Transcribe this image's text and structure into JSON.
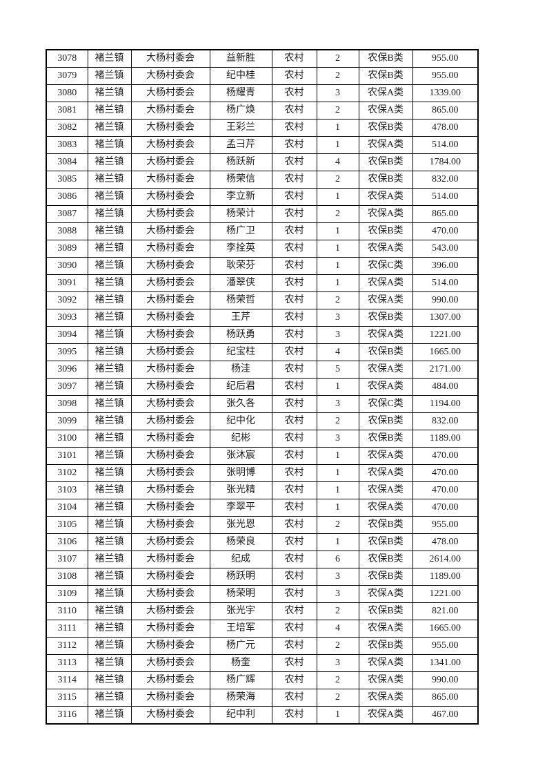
{
  "page": {
    "background_color": "#ffffff",
    "text_color": "#1d1d1d",
    "border_color": "#000000"
  },
  "table": {
    "rows": [
      [
        "3078",
        "褚兰镇",
        "大杨村委会",
        "益新胜",
        "农村",
        "2",
        "农保B类",
        "955.00"
      ],
      [
        "3079",
        "褚兰镇",
        "大杨村委会",
        "纪中桂",
        "农村",
        "2",
        "农保B类",
        "955.00"
      ],
      [
        "3080",
        "褚兰镇",
        "大杨村委会",
        "杨耀青",
        "农村",
        "3",
        "农保A类",
        "1339.00"
      ],
      [
        "3081",
        "褚兰镇",
        "大杨村委会",
        "杨广焕",
        "农村",
        "2",
        "农保A类",
        "865.00"
      ],
      [
        "3082",
        "褚兰镇",
        "大杨村委会",
        "王彩兰",
        "农村",
        "1",
        "农保B类",
        "478.00"
      ],
      [
        "3083",
        "褚兰镇",
        "大杨村委会",
        "孟彐芹",
        "农村",
        "1",
        "农保A类",
        "514.00"
      ],
      [
        "3084",
        "褚兰镇",
        "大杨村委会",
        "杨跃新",
        "农村",
        "4",
        "农保B类",
        "1784.00"
      ],
      [
        "3085",
        "褚兰镇",
        "大杨村委会",
        "杨荣信",
        "农村",
        "2",
        "农保B类",
        "832.00"
      ],
      [
        "3086",
        "褚兰镇",
        "大杨村委会",
        "李立新",
        "农村",
        "1",
        "农保A类",
        "514.00"
      ],
      [
        "3087",
        "褚兰镇",
        "大杨村委会",
        "杨荣计",
        "农村",
        "2",
        "农保A类",
        "865.00"
      ],
      [
        "3088",
        "褚兰镇",
        "大杨村委会",
        "杨广卫",
        "农村",
        "1",
        "农保B类",
        "470.00"
      ],
      [
        "3089",
        "褚兰镇",
        "大杨村委会",
        "李拴英",
        "农村",
        "1",
        "农保A类",
        "543.00"
      ],
      [
        "3090",
        "褚兰镇",
        "大杨村委会",
        "耿荣芬",
        "农村",
        "1",
        "农保C类",
        "396.00"
      ],
      [
        "3091",
        "褚兰镇",
        "大杨村委会",
        "潘翠侠",
        "农村",
        "1",
        "农保A类",
        "514.00"
      ],
      [
        "3092",
        "褚兰镇",
        "大杨村委会",
        "杨荣哲",
        "农村",
        "2",
        "农保A类",
        "990.00"
      ],
      [
        "3093",
        "褚兰镇",
        "大杨村委会",
        "王芹",
        "农村",
        "3",
        "农保B类",
        "1307.00"
      ],
      [
        "3094",
        "褚兰镇",
        "大杨村委会",
        "杨跃勇",
        "农村",
        "3",
        "农保A类",
        "1221.00"
      ],
      [
        "3095",
        "褚兰镇",
        "大杨村委会",
        "纪宝柱",
        "农村",
        "4",
        "农保B类",
        "1665.00"
      ],
      [
        "3096",
        "褚兰镇",
        "大杨村委会",
        "杨洼",
        "农村",
        "5",
        "农保A类",
        "2171.00"
      ],
      [
        "3097",
        "褚兰镇",
        "大杨村委会",
        "纪后君",
        "农村",
        "1",
        "农保A类",
        "484.00"
      ],
      [
        "3098",
        "褚兰镇",
        "大杨村委会",
        "张久各",
        "农村",
        "3",
        "农保C类",
        "1194.00"
      ],
      [
        "3099",
        "褚兰镇",
        "大杨村委会",
        "纪中化",
        "农村",
        "2",
        "农保B类",
        "832.00"
      ],
      [
        "3100",
        "褚兰镇",
        "大杨村委会",
        "纪彬",
        "农村",
        "3",
        "农保B类",
        "1189.00"
      ],
      [
        "3101",
        "褚兰镇",
        "大杨村委会",
        "张沐宸",
        "农村",
        "1",
        "农保A类",
        "470.00"
      ],
      [
        "3102",
        "褚兰镇",
        "大杨村委会",
        "张明博",
        "农村",
        "1",
        "农保A类",
        "470.00"
      ],
      [
        "3103",
        "褚兰镇",
        "大杨村委会",
        "张光精",
        "农村",
        "1",
        "农保A类",
        "470.00"
      ],
      [
        "3104",
        "褚兰镇",
        "大杨村委会",
        "李翠平",
        "农村",
        "1",
        "农保A类",
        "470.00"
      ],
      [
        "3105",
        "褚兰镇",
        "大杨村委会",
        "张光恩",
        "农村",
        "2",
        "农保B类",
        "955.00"
      ],
      [
        "3106",
        "褚兰镇",
        "大杨村委会",
        "杨荣良",
        "农村",
        "1",
        "农保B类",
        "478.00"
      ],
      [
        "3107",
        "褚兰镇",
        "大杨村委会",
        "纪成",
        "农村",
        "6",
        "农保B类",
        "2614.00"
      ],
      [
        "3108",
        "褚兰镇",
        "大杨村委会",
        "杨跃明",
        "农村",
        "3",
        "农保B类",
        "1189.00"
      ],
      [
        "3109",
        "褚兰镇",
        "大杨村委会",
        "杨荣明",
        "农村",
        "3",
        "农保A类",
        "1221.00"
      ],
      [
        "3110",
        "褚兰镇",
        "大杨村委会",
        "张光宇",
        "农村",
        "2",
        "农保B类",
        "821.00"
      ],
      [
        "3111",
        "褚兰镇",
        "大杨村委会",
        "王培军",
        "农村",
        "4",
        "农保A类",
        "1665.00"
      ],
      [
        "3112",
        "褚兰镇",
        "大杨村委会",
        "杨广元",
        "农村",
        "2",
        "农保B类",
        "955.00"
      ],
      [
        "3113",
        "褚兰镇",
        "大杨村委会",
        "杨奎",
        "农村",
        "3",
        "农保A类",
        "1341.00"
      ],
      [
        "3114",
        "褚兰镇",
        "大杨村委会",
        "杨广辉",
        "农村",
        "2",
        "农保A类",
        "990.00"
      ],
      [
        "3115",
        "褚兰镇",
        "大杨村委会",
        "杨荣海",
        "农村",
        "2",
        "农保A类",
        "865.00"
      ],
      [
        "3116",
        "褚兰镇",
        "大杨村委会",
        "纪中利",
        "农村",
        "1",
        "农保A类",
        "467.00"
      ]
    ]
  }
}
